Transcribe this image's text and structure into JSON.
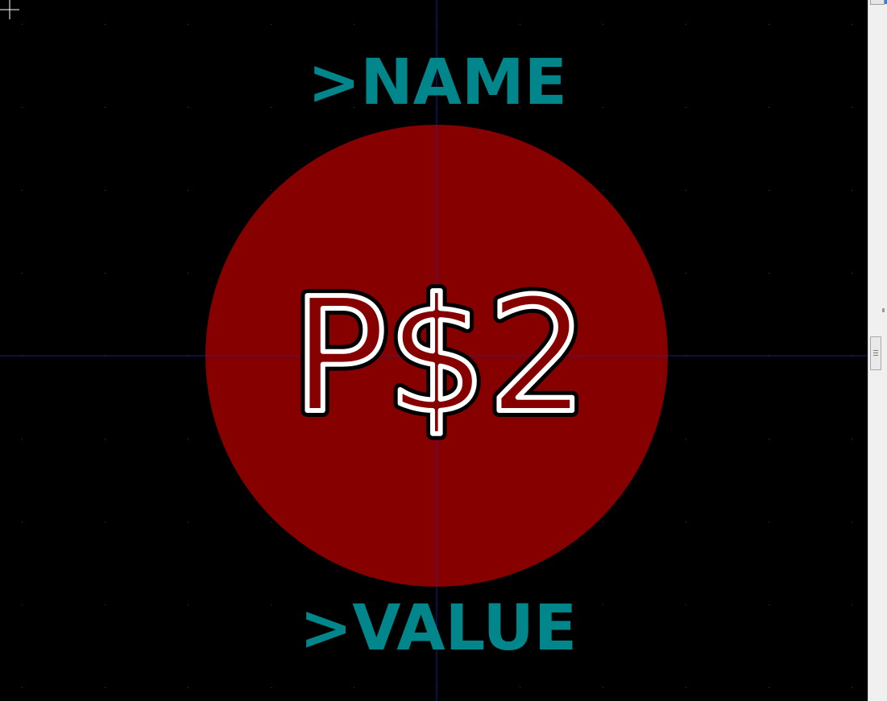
{
  "window": {
    "app": "PCB footprint editor canvas"
  },
  "footprint": {
    "name_placeholder": ">NAME",
    "value_placeholder": ">VALUE",
    "pad_label": "P$2"
  },
  "colors": {
    "background": "#000000",
    "grid_dot": "#3a3a3a",
    "axis": "#1a1a9a",
    "pad": "#870000",
    "silkscreen_text": "#00868b",
    "pad_text": "#ffffff",
    "pad_text_outline": "#000000"
  },
  "icons": {
    "cursor": "crosshair-cursor-icon",
    "scroll_thumb_grip": "grip-lines-icon"
  }
}
